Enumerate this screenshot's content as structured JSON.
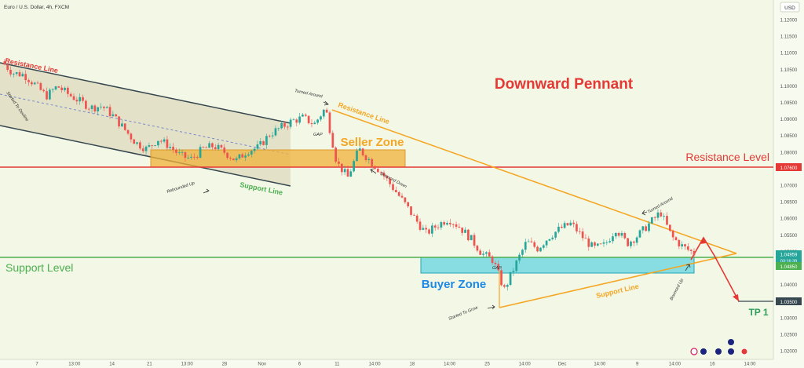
{
  "header": {
    "symbol": "Euro / U.S. Dollar, 4h, FXCM"
  },
  "currency_button": "USD",
  "colors": {
    "background": "#f2f7e6",
    "candle_up": "#26a69a",
    "candle_down": "#ef5350",
    "resistance": "#e53935",
    "support": "#4caf50",
    "pennant": "#f5a623",
    "channel": "#37474f",
    "buyer_zone": "#4dd0e1",
    "seller_zone": "#f0b13a",
    "annotation_blue": "#1e88e5",
    "annotation_green": "#2e9e5b"
  },
  "annotations": {
    "title": "Downward Pennant",
    "resistance_level": "Resistance Level",
    "support_level": "Support Level",
    "seller_zone": "Seller Zone",
    "buyer_zone": "Buyer Zone",
    "tp1": "TP 1",
    "resistance_line_channel": "Resistance Line",
    "support_line_channel": "Support Line",
    "resistance_line_pennant": "Resistance Line",
    "support_line_pennant": "Support Line",
    "started_to_decline": "Started To Decline",
    "rebounded_up": "Rebounded Up",
    "turned_around_1": "Turned Around",
    "turned_around_2": "Turned Around",
    "gap_1": "GAP",
    "gap_2": "GAP",
    "bounced_down": "Bounced Down",
    "started_to_grow": "Started To Grow",
    "bounced_up": "Bounced Up"
  },
  "chart_data": {
    "type": "candlestick",
    "y_axis_ticks": [
      "1.12000",
      "1.11500",
      "1.11000",
      "1.10500",
      "1.10000",
      "1.09500",
      "1.09000",
      "1.08500",
      "1.08000",
      "1.07500",
      "1.07000",
      "1.06500",
      "1.06000",
      "1.05500",
      "1.05000",
      "1.04500",
      "1.04000",
      "1.03500",
      "1.03000",
      "1.02500",
      "1.02000"
    ],
    "ylim": [
      1.0175,
      1.1245
    ],
    "x_axis_labels": [
      "7",
      "13:00",
      "14",
      "21",
      "13:00",
      "28",
      "Nov",
      "6",
      "11",
      "14:00",
      "18",
      "14:00",
      "25",
      "14:00",
      "Dec",
      "14:00",
      "9",
      "14:00",
      "16",
      "14:00"
    ],
    "price_labels": {
      "resistance": "1.07600",
      "current": "1.04959",
      "countdown": "03:16:39",
      "support": "1.04850",
      "target": "1.03500"
    },
    "levels": {
      "resistance": 1.076,
      "support": 1.0485,
      "target": 1.035
    },
    "close_path": [
      1.1075,
      1.104,
      1.1035,
      1.1005,
      1.097,
      1.1,
      1.0975,
      1.0955,
      1.0935,
      1.094,
      1.091,
      1.087,
      1.083,
      1.081,
      1.084,
      1.082,
      1.079,
      1.078,
      1.081,
      1.082,
      1.08,
      1.0775,
      1.0805,
      1.0815,
      1.0855,
      1.0875,
      1.0895,
      1.0905,
      1.0885,
      1.0935,
      1.077,
      1.0725,
      1.081,
      1.0775,
      1.074,
      1.0695,
      1.065,
      1.06,
      1.0555,
      1.058,
      1.06,
      1.0575,
      1.054,
      1.0495,
      1.0475,
      1.0385,
      1.046,
      1.053,
      1.051,
      1.0545,
      1.057,
      1.0585,
      1.0545,
      1.051,
      1.052,
      1.057,
      1.0525,
      1.055,
      1.0585,
      1.062,
      1.0545,
      1.0515,
      1.0495
    ]
  }
}
